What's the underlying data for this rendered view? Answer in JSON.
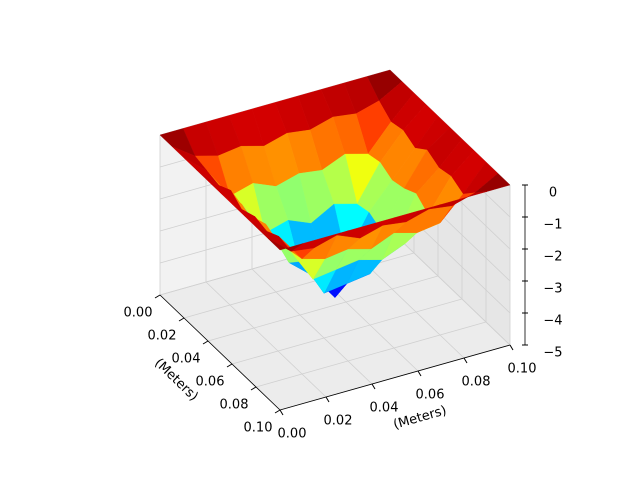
{
  "chart_data": {
    "type": "surface3d",
    "colormap": "jet",
    "xlabel": "(Meters)",
    "ylabel": "(Meters)",
    "x": [
      0,
      0.01,
      0.02,
      0.03,
      0.04,
      0.05,
      0.06,
      0.07,
      0.08,
      0.09,
      0.1
    ],
    "y": [
      0,
      0.01,
      0.02,
      0.03,
      0.04,
      0.05,
      0.06,
      0.07,
      0.08,
      0.09,
      0.1
    ],
    "z": [
      [
        0,
        0,
        0,
        0,
        0,
        0,
        0,
        0,
        0,
        0,
        0
      ],
      [
        0,
        -0.5,
        -0.7,
        -0.6,
        -0.8,
        -0.6,
        -0.7,
        -0.5,
        -0.6,
        -0.4,
        0
      ],
      [
        0,
        -0.6,
        -1.6,
        -1.4,
        -1.7,
        -1.5,
        -1.6,
        -1.3,
        -1.5,
        -0.7,
        0
      ],
      [
        0,
        -0.7,
        -1.5,
        -2.6,
        -2.4,
        -2.7,
        -2.3,
        -2.5,
        -1.4,
        -0.6,
        0
      ],
      [
        0,
        -0.5,
        -1.7,
        -2.5,
        -3.5,
        -3.3,
        -3.6,
        -2.4,
        -1.6,
        -0.8,
        0
      ],
      [
        0,
        -0.8,
        -1.4,
        -2.8,
        -3.4,
        -4.3,
        -3.3,
        -2.6,
        -1.5,
        -0.5,
        0
      ],
      [
        0,
        -0.6,
        -1.6,
        -2.4,
        -3.6,
        -3.5,
        -3.4,
        -2.7,
        -1.3,
        -0.7,
        0
      ],
      [
        0,
        -0.7,
        -1.5,
        -2.6,
        -2.5,
        -2.4,
        -2.6,
        -2.3,
        -1.6,
        -0.6,
        0
      ],
      [
        0,
        -0.5,
        -1.4,
        -1.6,
        -1.5,
        -1.7,
        -1.4,
        -1.6,
        -1.5,
        -0.8,
        0
      ],
      [
        0,
        -0.6,
        -0.7,
        -0.5,
        -0.8,
        -0.6,
        -0.7,
        -0.5,
        -0.6,
        -0.4,
        0
      ],
      [
        0,
        0,
        0,
        0,
        0,
        0,
        0,
        0,
        0,
        0,
        0
      ]
    ],
    "xlim": [
      0,
      0.1
    ],
    "ylim": [
      0,
      0.1
    ],
    "zlim": [
      -5,
      0
    ],
    "xticks": [
      {
        "value": 0,
        "label": "0.00"
      },
      {
        "value": 0.02,
        "label": "0.02"
      },
      {
        "value": 0.04,
        "label": "0.04"
      },
      {
        "value": 0.06,
        "label": "0.06"
      },
      {
        "value": 0.08,
        "label": "0.08"
      },
      {
        "value": 0.1,
        "label": "0.10"
      }
    ],
    "yticks": [
      {
        "value": 0,
        "label": "0.00"
      },
      {
        "value": 0.02,
        "label": "0.02"
      },
      {
        "value": 0.04,
        "label": "0.04"
      },
      {
        "value": 0.06,
        "label": "0.06"
      },
      {
        "value": 0.08,
        "label": "0.08"
      },
      {
        "value": 0.1,
        "label": "0.10"
      }
    ],
    "zticks": [
      {
        "value": -5,
        "label": "−5"
      },
      {
        "value": -4,
        "label": "−4"
      },
      {
        "value": -3,
        "label": "−3"
      },
      {
        "value": -2,
        "label": "−2"
      },
      {
        "value": -1,
        "label": "−1"
      },
      0
    ]
  }
}
